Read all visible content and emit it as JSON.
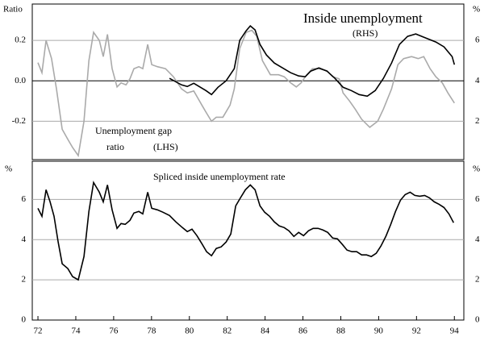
{
  "chart_data": [
    {
      "type": "line",
      "ylabel": "Ratio",
      "y2label": "%",
      "xlim": [
        71.7,
        94.5
      ],
      "ylim": [
        -0.39,
        0.38
      ],
      "yticks": [
        -0.2,
        {
          "value": 0,
          "label": "0.0"
        },
        0.2
      ],
      "y2lim": [
        0.1,
        7.8
      ],
      "y2ticks": [
        2,
        4,
        6
      ],
      "grid": true,
      "series": [
        {
          "name": "Unemployment gap",
          "name_cont": "ratio",
          "note": "(LHS)",
          "color": "#aaaaaa",
          "axis": "y",
          "x": [
            72.0,
            72.21,
            72.43,
            72.72,
            72.98,
            73.28,
            73.58,
            73.83,
            74.13,
            74.43,
            74.69,
            74.94,
            75.24,
            75.45,
            75.67,
            75.92,
            76.18,
            76.39,
            76.65,
            76.86,
            77.07,
            77.33,
            77.54,
            77.8,
            78.01,
            78.31,
            78.74,
            79.16,
            79.59,
            79.89,
            80.23,
            80.66,
            80.91,
            81.17,
            81.42,
            81.77,
            82.15,
            82.37,
            82.66,
            83.0,
            83.3,
            83.56,
            83.86,
            84.28,
            84.71,
            85.01,
            85.35,
            85.65,
            85.9,
            86.2,
            86.5,
            86.84,
            87.27,
            87.57,
            87.91,
            88.12,
            88.46,
            88.76,
            89.1,
            89.53,
            89.95,
            90.25,
            90.68,
            91.02,
            91.32,
            91.74,
            92.09,
            92.38,
            92.72,
            93.02,
            93.36,
            93.66,
            94.0
          ],
          "values": [
            0.09,
            0.04,
            0.2,
            0.11,
            -0.04,
            -0.24,
            -0.29,
            -0.33,
            -0.37,
            -0.2,
            0.1,
            0.24,
            0.2,
            0.12,
            0.23,
            0.06,
            -0.03,
            -0.01,
            -0.02,
            0.01,
            0.06,
            0.07,
            0.06,
            0.18,
            0.08,
            0.07,
            0.06,
            0.02,
            -0.04,
            -0.06,
            -0.05,
            -0.12,
            -0.16,
            -0.2,
            -0.18,
            -0.18,
            -0.12,
            -0.04,
            0.16,
            0.24,
            0.25,
            0.22,
            0.1,
            0.03,
            0.03,
            0.02,
            -0.01,
            -0.03,
            -0.01,
            0.03,
            0.06,
            0.06,
            0.05,
            0.02,
            0.01,
            -0.06,
            -0.1,
            -0.14,
            -0.19,
            -0.23,
            -0.2,
            -0.14,
            -0.04,
            0.08,
            0.11,
            0.12,
            0.11,
            0.12,
            0.06,
            0.02,
            -0.01,
            -0.06,
            -0.11
          ]
        },
        {
          "name": "Inside unemployment",
          "note": "(RHS)",
          "color": "#000000",
          "axis": "y2",
          "x": [
            78.95,
            79.59,
            79.89,
            80.23,
            80.87,
            81.17,
            81.51,
            81.94,
            82.37,
            82.66,
            83.0,
            83.22,
            83.47,
            83.73,
            84.07,
            84.49,
            84.92,
            85.35,
            85.77,
            86.12,
            86.41,
            86.84,
            87.27,
            87.69,
            88.12,
            88.55,
            88.97,
            89.4,
            89.82,
            90.25,
            90.68,
            91.1,
            91.53,
            91.96,
            92.38,
            93.02,
            93.45,
            93.88,
            94.0
          ],
          "values": [
            4.12,
            3.8,
            3.72,
            3.88,
            3.52,
            3.32,
            3.68,
            4.0,
            4.6,
            6.0,
            6.48,
            6.72,
            6.52,
            5.8,
            5.28,
            4.88,
            4.64,
            4.4,
            4.24,
            4.2,
            4.48,
            4.64,
            4.48,
            4.12,
            3.68,
            3.52,
            3.32,
            3.24,
            3.52,
            4.12,
            4.88,
            5.8,
            6.2,
            6.32,
            6.16,
            5.92,
            5.68,
            5.2,
            4.8
          ]
        }
      ]
    },
    {
      "type": "line",
      "ylabel": "%",
      "y2label": "%",
      "xlim": [
        71.7,
        94.5
      ],
      "xticks": [
        72,
        74,
        76,
        78,
        80,
        82,
        84,
        86,
        88,
        90,
        92,
        94
      ],
      "ylim": [
        0,
        7.9
      ],
      "yticks": [
        0,
        2,
        4,
        6
      ],
      "y2lim": [
        0,
        7.9
      ],
      "y2ticks": [
        0,
        2,
        4,
        6
      ],
      "grid": true,
      "series": [
        {
          "name": "Spliced inside unemployment rate",
          "color": "#000000",
          "axis": "y",
          "x": [
            72.0,
            72.21,
            72.43,
            72.64,
            72.85,
            73.07,
            73.28,
            73.58,
            73.83,
            74.13,
            74.43,
            74.69,
            74.94,
            75.24,
            75.45,
            75.67,
            75.92,
            76.18,
            76.39,
            76.61,
            76.86,
            77.07,
            77.33,
            77.54,
            77.8,
            78.01,
            78.31,
            78.61,
            78.95,
            79.29,
            79.63,
            79.89,
            80.14,
            80.4,
            80.66,
            80.91,
            81.17,
            81.42,
            81.68,
            81.94,
            82.19,
            82.45,
            82.7,
            82.96,
            83.22,
            83.47,
            83.73,
            83.98,
            84.24,
            84.49,
            84.75,
            85.01,
            85.26,
            85.52,
            85.77,
            86.03,
            86.29,
            86.54,
            86.8,
            87.05,
            87.31,
            87.57,
            87.82,
            88.08,
            88.33,
            88.59,
            88.84,
            89.1,
            89.36,
            89.61,
            89.87,
            90.12,
            90.38,
            90.64,
            90.89,
            91.15,
            91.4,
            91.66,
            91.91,
            92.17,
            92.43,
            92.68,
            92.94,
            93.19,
            93.45,
            93.71,
            93.96
          ],
          "values": [
            5.56,
            5.16,
            6.48,
            5.88,
            5.16,
            3.88,
            2.8,
            2.56,
            2.16,
            2.0,
            3.16,
            5.4,
            6.84,
            6.36,
            5.88,
            6.72,
            5.48,
            4.56,
            4.8,
            4.76,
            4.96,
            5.32,
            5.4,
            5.28,
            6.36,
            5.56,
            5.48,
            5.36,
            5.2,
            4.88,
            4.6,
            4.4,
            4.52,
            4.2,
            3.8,
            3.4,
            3.2,
            3.56,
            3.64,
            3.88,
            4.28,
            5.68,
            6.08,
            6.48,
            6.72,
            6.48,
            5.68,
            5.36,
            5.16,
            4.88,
            4.68,
            4.6,
            4.44,
            4.16,
            4.36,
            4.2,
            4.44,
            4.56,
            4.56,
            4.48,
            4.36,
            4.08,
            4.04,
            3.76,
            3.48,
            3.4,
            3.4,
            3.24,
            3.24,
            3.16,
            3.32,
            3.68,
            4.16,
            4.76,
            5.4,
            5.96,
            6.24,
            6.36,
            6.2,
            6.16,
            6.2,
            6.08,
            5.88,
            5.76,
            5.6,
            5.28,
            4.84
          ]
        }
      ]
    }
  ]
}
